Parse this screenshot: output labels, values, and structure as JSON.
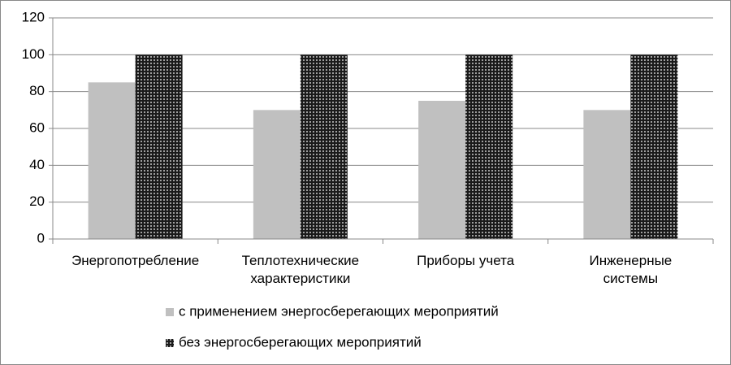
{
  "chart_data": {
    "type": "bar",
    "categories": [
      "Энергопотребление",
      "Теплотехнические\nхарактеристики",
      "Приборы учета",
      "Инженерные\nсистемы"
    ],
    "series": [
      {
        "name": "с применением энергосберегающих мероприятий",
        "color": "#c0c0c0",
        "values": [
          85,
          70,
          75,
          70
        ]
      },
      {
        "name": "без энергосберегающих мероприятий",
        "color": "#1a1a1a",
        "pattern": "crosshatch",
        "values": [
          100,
          100,
          100,
          100
        ]
      }
    ],
    "ylim": [
      0,
      120
    ],
    "yticks": [
      0,
      20,
      40,
      60,
      80,
      100,
      120
    ],
    "grid": true,
    "legend": "bottom"
  }
}
